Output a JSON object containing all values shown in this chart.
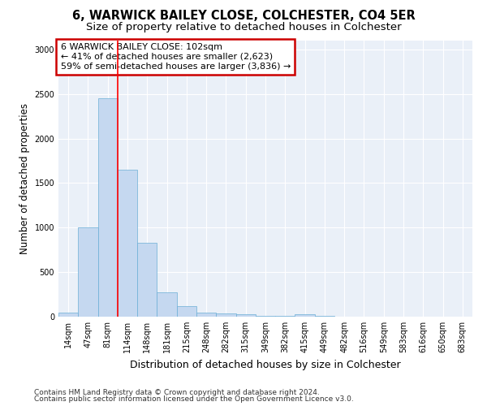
{
  "title": "6, WARWICK BAILEY CLOSE, COLCHESTER, CO4 5ER",
  "subtitle": "Size of property relative to detached houses in Colchester",
  "xlabel": "Distribution of detached houses by size in Colchester",
  "ylabel": "Number of detached properties",
  "footnote1": "Contains HM Land Registry data © Crown copyright and database right 2024.",
  "footnote2": "Contains public sector information licensed under the Open Government Licence v3.0.",
  "annotation_line1": "6 WARWICK BAILEY CLOSE: 102sqm",
  "annotation_line2": "← 41% of detached houses are smaller (2,623)",
  "annotation_line3": "59% of semi-detached houses are larger (3,836) →",
  "bar_labels": [
    "14sqm",
    "47sqm",
    "81sqm",
    "114sqm",
    "148sqm",
    "181sqm",
    "215sqm",
    "248sqm",
    "282sqm",
    "315sqm",
    "349sqm",
    "382sqm",
    "415sqm",
    "449sqm",
    "482sqm",
    "516sqm",
    "549sqm",
    "583sqm",
    "616sqm",
    "650sqm",
    "683sqm"
  ],
  "bar_values": [
    50,
    1000,
    2450,
    1650,
    830,
    270,
    120,
    50,
    35,
    30,
    5,
    5,
    30,
    5,
    0,
    0,
    0,
    0,
    0,
    0,
    0
  ],
  "bar_color": "#c5d8f0",
  "bar_edge_color": "#6aaed6",
  "red_line_x": 2.5,
  "ylim": [
    0,
    3100
  ],
  "yticks": [
    0,
    500,
    1000,
    1500,
    2000,
    2500,
    3000
  ],
  "background_color": "#eaf0f8",
  "grid_color": "#ffffff",
  "annotation_box_color": "#ffffff",
  "annotation_box_edge": "#cc0000",
  "title_fontsize": 10.5,
  "subtitle_fontsize": 9.5,
  "xlabel_fontsize": 9,
  "ylabel_fontsize": 8.5,
  "tick_fontsize": 7,
  "annotation_fontsize": 8,
  "footnote_fontsize": 6.5
}
